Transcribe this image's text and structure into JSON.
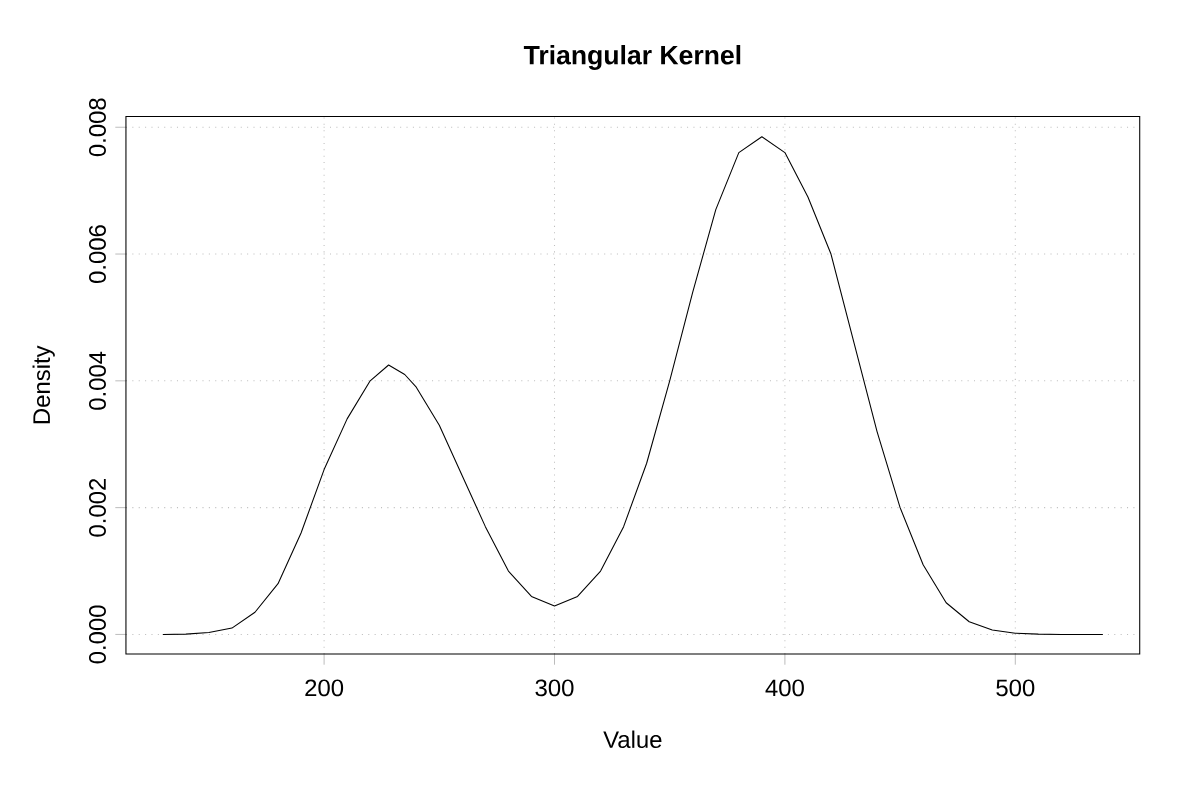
{
  "chart_data": {
    "type": "line",
    "title": "Triangular Kernel",
    "xlabel": "Value",
    "ylabel": "Density",
    "x": [
      130,
      140,
      150,
      160,
      170,
      180,
      190,
      200,
      210,
      220,
      228,
      235,
      240,
      250,
      260,
      270,
      280,
      290,
      300,
      310,
      320,
      330,
      340,
      350,
      360,
      370,
      380,
      390,
      400,
      410,
      420,
      430,
      440,
      450,
      460,
      470,
      480,
      490,
      500,
      510,
      520,
      538
    ],
    "values": [
      0,
      5e-06,
      3e-05,
      0.0001,
      0.00035,
      0.0008,
      0.0016,
      0.0026,
      0.0034,
      0.004,
      0.00425,
      0.0041,
      0.0039,
      0.0033,
      0.0025,
      0.0017,
      0.001,
      0.0006,
      0.00045,
      0.0006,
      0.001,
      0.0017,
      0.0027,
      0.004,
      0.0054,
      0.0067,
      0.0076,
      0.00785,
      0.0076,
      0.0069,
      0.006,
      0.0046,
      0.0032,
      0.002,
      0.0011,
      0.0005,
      0.0002,
      7e-05,
      2e-05,
      5e-06,
      0,
      0
    ],
    "color": "#000000",
    "xlim": [
      114,
      554
    ],
    "ylim": [
      -0.00031,
      0.00817
    ],
    "xticks": [
      200,
      300,
      400,
      500
    ],
    "yticks": [
      {
        "value": 0,
        "label": "0.000"
      },
      {
        "value": 0.002,
        "label": "0.002"
      },
      {
        "value": 0.004,
        "label": "0.004"
      },
      {
        "value": 0.006,
        "label": "0.006"
      },
      {
        "value": 0.008,
        "label": "0.008"
      }
    ],
    "grid": true
  }
}
